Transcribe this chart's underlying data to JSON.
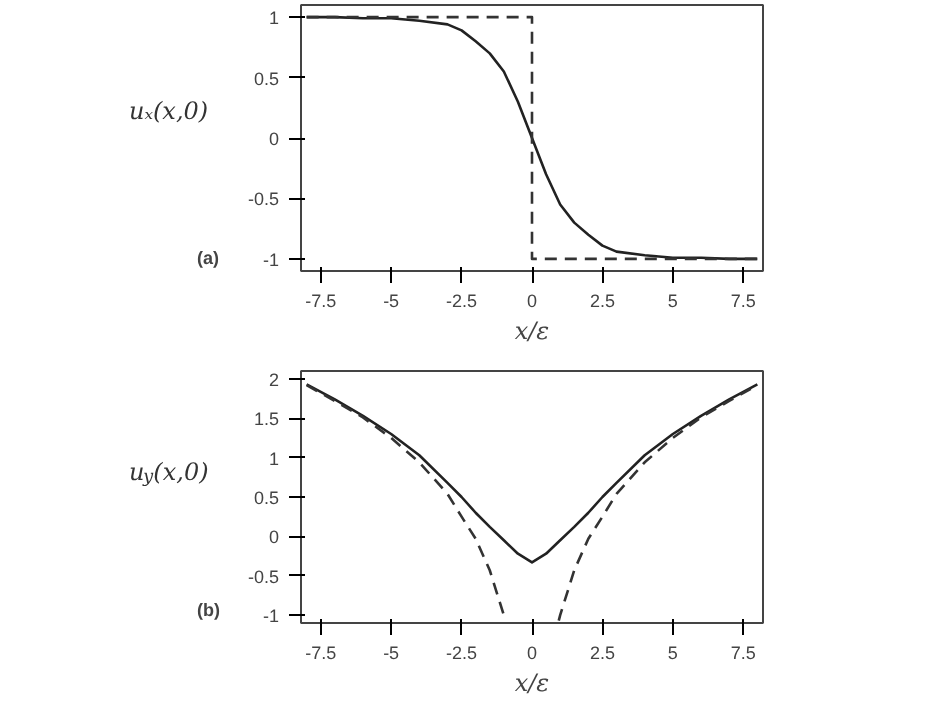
{
  "chart_data": [
    {
      "type": "line",
      "xlabel": "x/ε",
      "ylabel": "uₓ(x,0)",
      "annotations": [
        "(a)"
      ],
      "xlim": [
        -8.2,
        8.2
      ],
      "ylim": [
        -1.1,
        1.1
      ],
      "xticks": [
        -7.5,
        -5,
        -2.5,
        0,
        2.5,
        5,
        7.5
      ],
      "yticks": [
        -1,
        -0.5,
        0,
        0.5,
        1
      ],
      "grid": false,
      "series": [
        {
          "color": "#222222",
          "line_style": "solid",
          "x": [
            -8,
            -7,
            -6,
            -5,
            -4,
            -3,
            -2.5,
            -2,
            -1.5,
            -1,
            -0.5,
            0,
            0.5,
            1,
            1.5,
            2,
            2.5,
            3,
            4,
            5,
            6,
            7,
            8
          ],
          "values": [
            1.0,
            1.0,
            0.99,
            0.99,
            0.97,
            0.94,
            0.89,
            0.8,
            0.7,
            0.55,
            0.3,
            0,
            -0.3,
            -0.55,
            -0.7,
            -0.8,
            -0.89,
            -0.94,
            -0.97,
            -0.99,
            -0.99,
            -1.0,
            -1.0
          ]
        },
        {
          "color": "#333333",
          "line_style": "dashed",
          "x": [
            -8,
            0,
            0,
            8
          ],
          "values": [
            1,
            1,
            -1,
            -1
          ]
        }
      ]
    },
    {
      "type": "line",
      "xlabel": "x/ε",
      "ylabel": "u$_{y}$(x,0)",
      "annotations": [
        "(b)"
      ],
      "xlim": [
        -8.2,
        8.2
      ],
      "ylim": [
        -1.1,
        2.1
      ],
      "xticks": [
        -7.5,
        -5,
        -2.5,
        0,
        2.5,
        5,
        7.5
      ],
      "yticks": [
        -1,
        -0.5,
        0,
        0.5,
        1,
        1.5,
        2
      ],
      "grid": false,
      "series": [
        {
          "color": "#222222",
          "line_style": "solid",
          "x": [
            -8,
            -7,
            -6,
            -5,
            -4,
            -3,
            -2.5,
            -2,
            -1.5,
            -1,
            -0.5,
            0,
            0.5,
            1,
            1.5,
            2,
            2.5,
            3,
            4,
            5,
            6,
            7,
            8
          ],
          "values": [
            1.93,
            1.74,
            1.53,
            1.3,
            1.03,
            0.68,
            0.5,
            0.3,
            0.12,
            -0.05,
            -0.22,
            -0.33,
            -0.22,
            -0.05,
            0.12,
            0.3,
            0.5,
            0.68,
            1.03,
            1.3,
            1.53,
            1.74,
            1.93
          ]
        },
        {
          "color": "#333333",
          "line_style": "dashed",
          "x": [
            -8,
            -7,
            -6,
            -5,
            -4,
            -3,
            -2.5,
            -2,
            -1.5,
            -1,
            -0.95
          ],
          "values": [
            1.92,
            1.72,
            1.51,
            1.25,
            0.94,
            0.54,
            0.25,
            -0.03,
            -0.43,
            -1.0,
            -1.07
          ]
        },
        {
          "color": "#333333",
          "line_style": "dashed",
          "x": [
            0.95,
            1,
            1.5,
            2,
            2.5,
            3,
            4,
            5,
            6,
            7,
            8
          ],
          "values": [
            -1.07,
            -1.0,
            -0.43,
            -0.03,
            0.25,
            0.54,
            0.94,
            1.25,
            1.51,
            1.72,
            1.92
          ]
        }
      ]
    }
  ]
}
